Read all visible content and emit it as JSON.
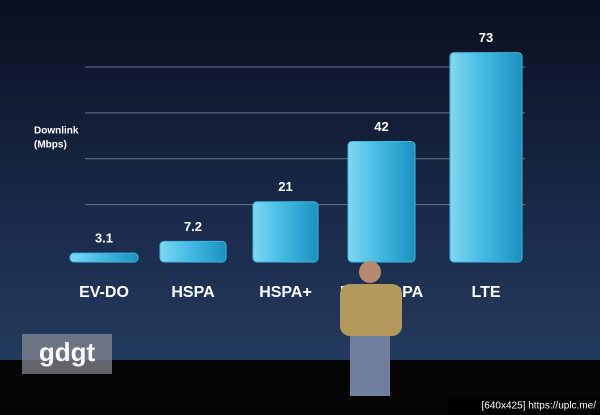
{
  "chart_data": {
    "type": "bar",
    "y_label": [
      "Downlink",
      "(Mbps)"
    ],
    "categories": [
      "EV-DO",
      "HSPA",
      "HSPA+",
      "DC-HSDPA",
      "LTE"
    ],
    "values": [
      3.1,
      7.2,
      21,
      42,
      73
    ],
    "color": "#3fb8e0",
    "ylim": [
      0,
      76
    ],
    "yticks": [
      20,
      36,
      52,
      68
    ],
    "grid": true
  },
  "watermark": "gdgt",
  "footer": "[640x425] https://uplc.me/"
}
